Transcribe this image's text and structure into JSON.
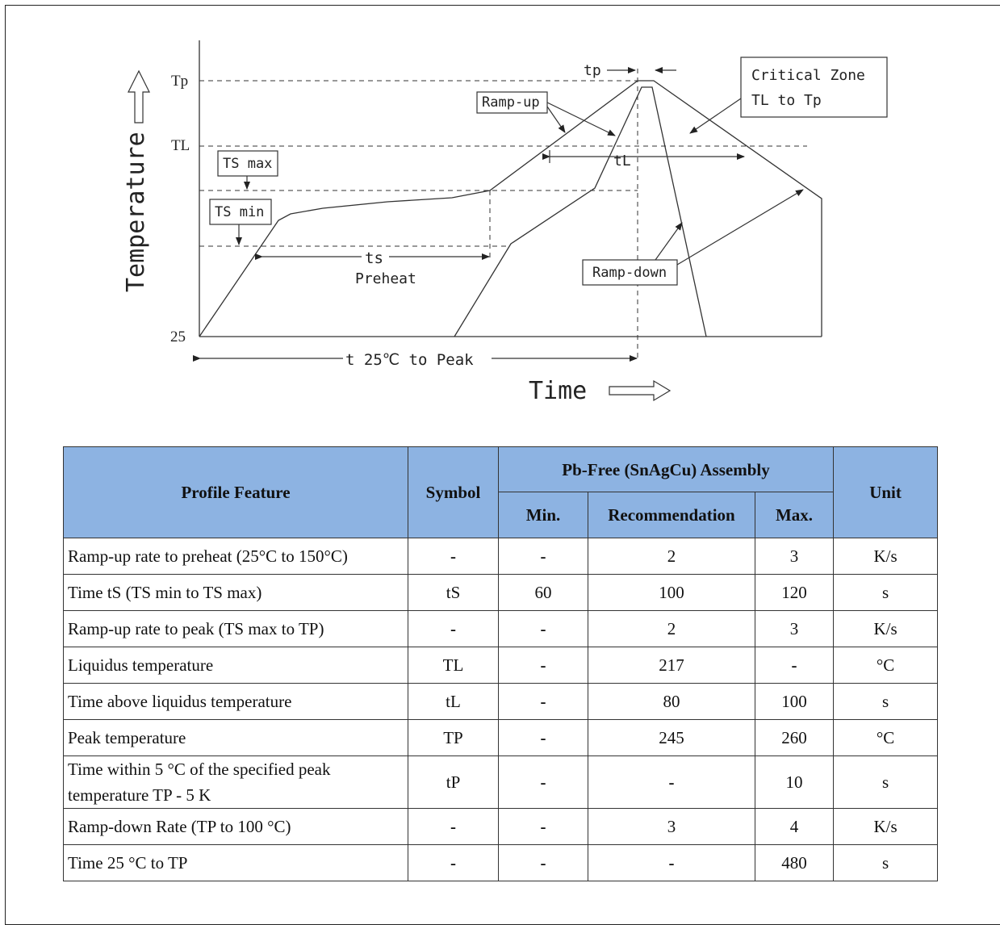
{
  "diagram": {
    "y_axis_label": "Temperature",
    "x_axis_label": "Time",
    "y_ticks": {
      "tp": "Tp",
      "tl": "TL",
      "t25": "25"
    },
    "boxes": {
      "ts_max": "TS max",
      "ts_min": "TS min",
      "ramp_up": "Ramp-up",
      "ramp_down": "Ramp-down",
      "critical_line1": "Critical Zone",
      "critical_line2": "TL to Tp"
    },
    "labels": {
      "tp": "tp",
      "tl": "tL",
      "ts": "ts",
      "preheat": "Preheat",
      "t25_to_peak": "t 25℃ to Peak"
    }
  },
  "table": {
    "headers": {
      "feature": "Profile Feature",
      "symbol": "Symbol",
      "assembly": "Pb-Free (SnAgCu) Assembly",
      "min": "Min.",
      "rec": "Recommendation",
      "max": "Max.",
      "unit": "Unit"
    },
    "rows": [
      {
        "feature": "Ramp-up rate to preheat (25°C to 150°C)",
        "symbol": "-",
        "min": "-",
        "rec": "2",
        "max": "3",
        "unit": "K/s"
      },
      {
        "feature": "Time tS (TS min to TS max)",
        "symbol": "tS",
        "min": "60",
        "rec": "100",
        "max": "120",
        "unit": "s"
      },
      {
        "feature": "Ramp-up rate to peak (TS max to TP)",
        "symbol": "-",
        "min": "-",
        "rec": "2",
        "max": "3",
        "unit": "K/s"
      },
      {
        "feature": "Liquidus temperature",
        "symbol": "TL",
        "min": "-",
        "rec": "217",
        "max": "-",
        "unit": "°C"
      },
      {
        "feature": "Time above liquidus temperature",
        "symbol": "tL",
        "min": "-",
        "rec": "80",
        "max": "100",
        "unit": "s"
      },
      {
        "feature": "Peak temperature",
        "symbol": "TP",
        "min": "-",
        "rec": "245",
        "max": "260",
        "unit": "°C"
      },
      {
        "feature": "Time within 5 °C of the specified peak temperature TP - 5 K",
        "symbol": "tP",
        "min": "-",
        "rec": "-",
        "max": "10",
        "unit": "s"
      },
      {
        "feature": "Ramp-down Rate (TP to 100 °C)",
        "symbol": "-",
        "min": "-",
        "rec": "3",
        "max": "4",
        "unit": "K/s"
      },
      {
        "feature": "Time 25 °C to TP",
        "symbol": "-",
        "min": "-",
        "rec": "-",
        "max": "480",
        "unit": "s"
      }
    ]
  }
}
